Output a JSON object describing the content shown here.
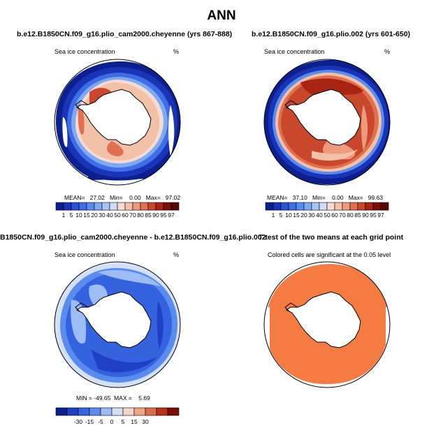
{
  "main_title": "ANN",
  "panels": [
    {
      "title": "b.e12.B1850CN.f09_g16.plio_cam2000.cheyenne (yrs 867-888)",
      "variable": "Sea ice concentration",
      "units": "%",
      "stats": "MEAN=   27.02   Min=    0.00   Max=   97.02",
      "colorbar_labels": [
        "1",
        "5",
        "10",
        "15",
        "20",
        "30",
        "40",
        "50",
        "60",
        "70",
        "80",
        "85",
        "90",
        "95",
        "97"
      ]
    },
    {
      "title": "b.e12.B1850CN.f09_g16.plio.002 (yrs 601-650)",
      "variable": "Sea ice concentration",
      "units": "%",
      "stats": "MEAN=   37.10   Min=    0.00   Max=   99.63",
      "colorbar_labels": [
        "1",
        "5",
        "10",
        "15",
        "20",
        "30",
        "40",
        "50",
        "60",
        "70",
        "80",
        "85",
        "90",
        "95",
        "97"
      ]
    },
    {
      "title": "B1850CN.f09_g16.plio_cam2000.cheyenne - b.e12.B1850CN.f09_g16.plio.002",
      "variable": "Sea ice concentration",
      "units": "%",
      "stats": "MIN = -49.65  MAX =    5.69",
      "colorbar_labels": [
        "-30",
        "-15",
        "-5",
        "0",
        "5",
        "15",
        "30"
      ]
    },
    {
      "title": "T-test of the two means at each grid point",
      "note": "Colored cells are significant at the 0.05 level"
    }
  ],
  "colors": {
    "seq_scale": [
      "#0b1f8f",
      "#1a34b8",
      "#2a52d8",
      "#3f6de6",
      "#5a8cf0",
      "#7ea9f3",
      "#a7c4f5",
      "#cfdcf6",
      "#f4dcd2",
      "#f3c0a8",
      "#ee9a7c",
      "#e0704f",
      "#c9482d",
      "#a82413",
      "#7d0d07",
      "#5a0603"
    ],
    "diff_scale": [
      "#0b1f8f",
      "#1f3fc4",
      "#3563e0",
      "#5a8cf0",
      "#9dbcf4",
      "#d3e0f7",
      "#f5d5c7",
      "#eea588",
      "#dd6b48",
      "#b8321a",
      "#7d0d07"
    ],
    "significance": "#f47c43",
    "land": "#ffffff"
  },
  "chart_data": [
    {
      "type": "heatmap",
      "projection": "south-polar-stereographic",
      "title": "b.e12.B1850CN.f09_g16.plio_cam2000.cheyenne (yrs 867-888)",
      "variable": "Sea ice concentration",
      "units": "%",
      "levels": [
        1,
        5,
        10,
        15,
        20,
        30,
        40,
        50,
        60,
        70,
        80,
        85,
        90,
        95,
        97
      ],
      "mean": 27.02,
      "min": 0.0,
      "max": 97.02
    },
    {
      "type": "heatmap",
      "projection": "south-polar-stereographic",
      "title": "b.e12.B1850CN.f09_g16.plio.002 (yrs 601-650)",
      "variable": "Sea ice concentration",
      "units": "%",
      "levels": [
        1,
        5,
        10,
        15,
        20,
        30,
        40,
        50,
        60,
        70,
        80,
        85,
        90,
        95,
        97
      ],
      "mean": 37.1,
      "min": 0.0,
      "max": 99.63
    },
    {
      "type": "heatmap",
      "projection": "south-polar-stereographic",
      "title": "B1850CN.f09_g16.plio_cam2000.cheyenne - b.e12.B1850CN.f09_g16.plio.002",
      "variable": "Sea ice concentration",
      "units": "%",
      "levels": [
        -30,
        -15,
        -5,
        0,
        5,
        15,
        30
      ],
      "min": -49.65,
      "max": 5.69
    },
    {
      "type": "heatmap",
      "projection": "south-polar-stereographic",
      "title": "T-test of the two means at each grid point",
      "note": "Colored cells are significant at the 0.05 level",
      "significance_level": 0.05
    }
  ]
}
